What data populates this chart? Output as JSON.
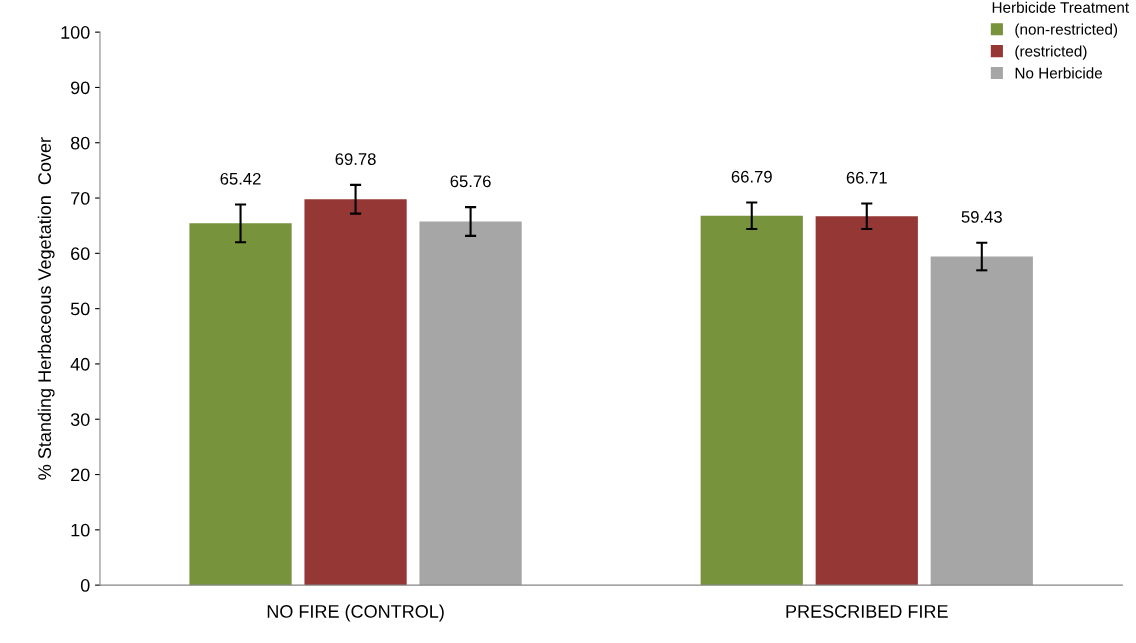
{
  "chart_data": {
    "type": "bar",
    "ylabel": "% Standing Herbaceous Vegetation  Cover",
    "legend_title": "Herbicide Treatment",
    "categories": [
      "NO FIRE (CONTROL)",
      "PRESCRIBED FIRE"
    ],
    "series": [
      {
        "name": "(non-restricted)",
        "color": "#77933c",
        "values": [
          65.42,
          66.79
        ],
        "errors": [
          3.4,
          2.4
        ]
      },
      {
        "name": "(restricted)",
        "color": "#953735",
        "values": [
          69.78,
          66.71
        ],
        "errors": [
          2.6,
          2.3
        ]
      },
      {
        "name": "No Herbicide",
        "color": "#a6a6a6",
        "values": [
          65.76,
          59.43
        ],
        "errors": [
          2.6,
          2.5
        ]
      }
    ],
    "ylim": [
      0,
      100
    ],
    "yticks": [
      0,
      10,
      20,
      30,
      40,
      50,
      60,
      70,
      80,
      90,
      100
    ],
    "data_labels": true,
    "grid": false,
    "legend": "top right"
  }
}
